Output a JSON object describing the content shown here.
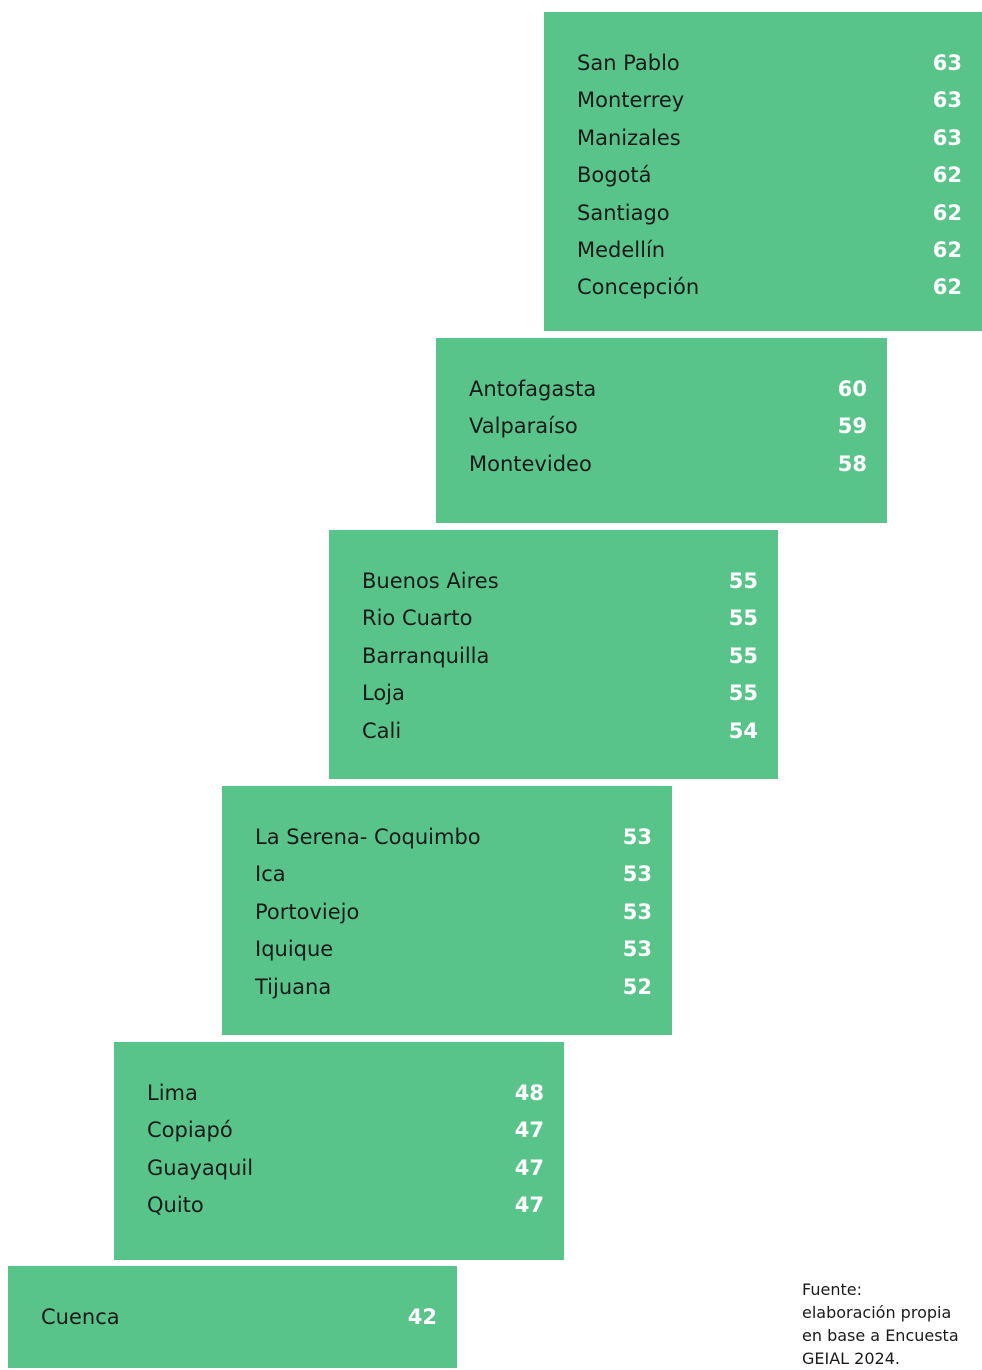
{
  "groups": [
    {
      "rows": [
        [
          "San Pablo",
          63
        ],
        [
          "Monterrey",
          63
        ],
        [
          "Manizales",
          63
        ],
        [
          "Bogotá",
          62
        ],
        [
          "Santiago",
          62
        ],
        [
          "Medellín",
          62
        ],
        [
          "Concepción",
          62
        ]
      ]
    },
    {
      "rows": [
        [
          "Antofagasta",
          60
        ],
        [
          "Valparaíso",
          59
        ],
        [
          "Montevideo",
          58
        ]
      ]
    },
    {
      "rows": [
        [
          "Buenos Aires",
          55
        ],
        [
          "Rio Cuarto",
          55
        ],
        [
          "Barranquilla",
          55
        ],
        [
          "Loja",
          55
        ],
        [
          "Cali",
          54
        ]
      ]
    },
    {
      "rows": [
        [
          "La Serena- Coquimbo",
          53
        ],
        [
          "Ica",
          53
        ],
        [
          "Portoviejo",
          53
        ],
        [
          "Iquique",
          53
        ],
        [
          "Tijuana",
          52
        ]
      ]
    },
    {
      "rows": [
        [
          "Lima",
          48
        ],
        [
          "Copiapó",
          47
        ],
        [
          "Guayaquil",
          47
        ],
        [
          "Quito",
          47
        ]
      ]
    },
    {
      "rows": [
        [
          "Cuenca",
          42
        ]
      ]
    }
  ],
  "source": [
    "Fuente:",
    "elaboración propia",
    "en base a Encuesta",
    "GEIAL 2024."
  ]
}
